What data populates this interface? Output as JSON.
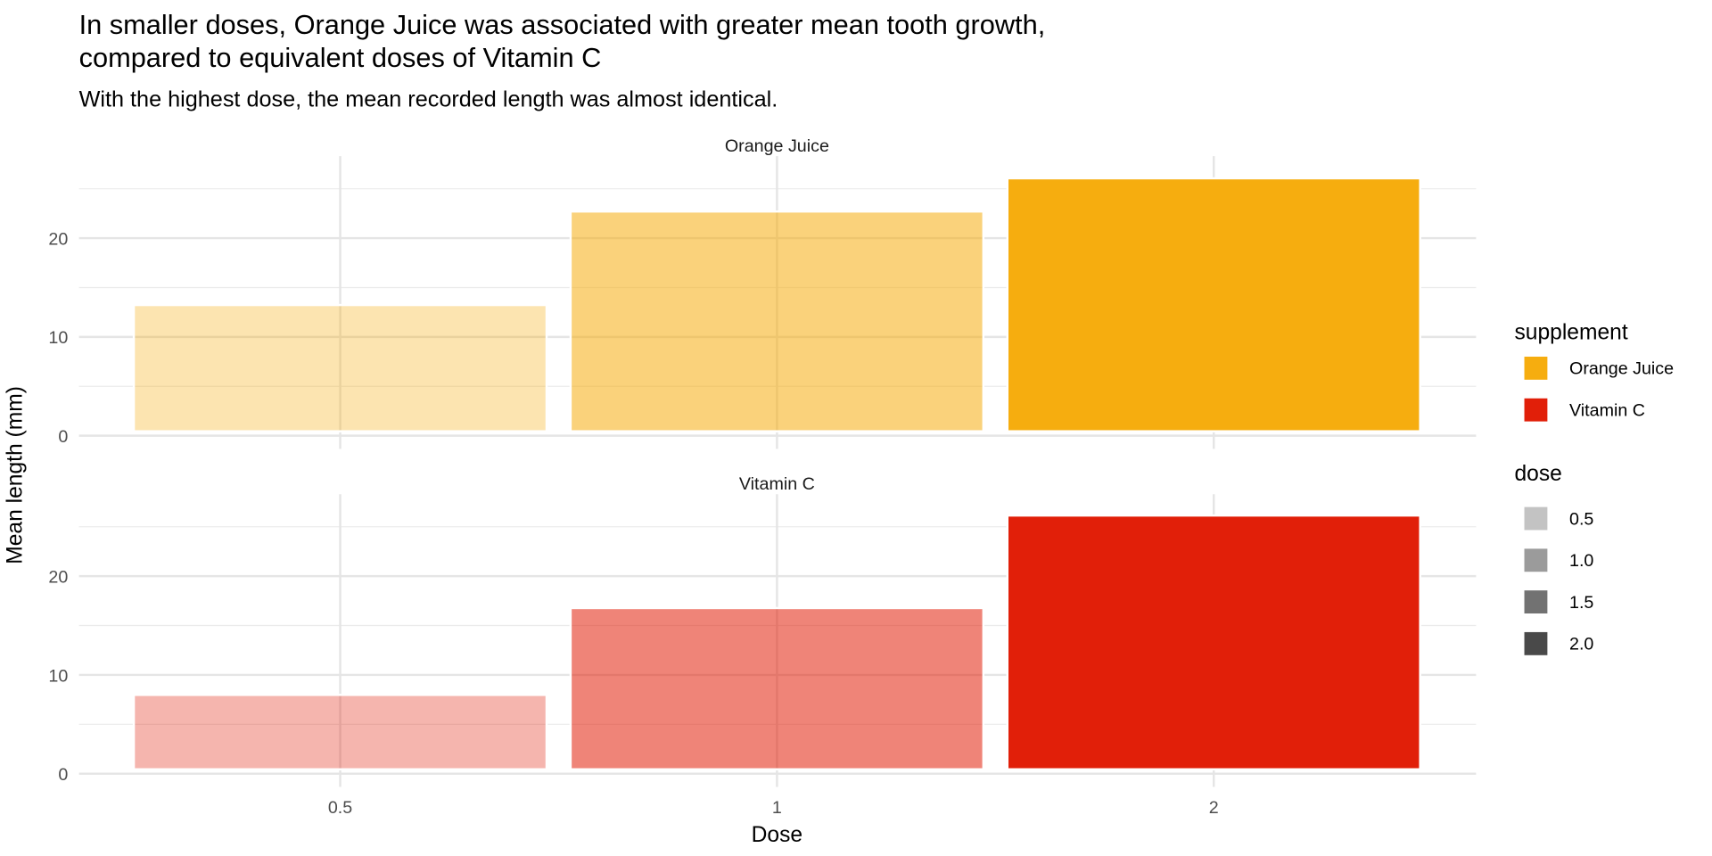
{
  "chart_data": {
    "type": "bar",
    "title": "In smaller doses, Orange Juice was associated with greater mean tooth growth,",
    "title_line2": "compared to equivalent doses of Vitamin C",
    "subtitle": "With the highest dose, the mean recorded length was almost identical.",
    "xlabel": "Dose",
    "ylabel": "Mean length (mm)",
    "categories": [
      "0.5",
      "1",
      "2"
    ],
    "ylim": [
      0,
      28.3
    ],
    "yticks": [
      "0",
      "10",
      "20"
    ],
    "grid": true,
    "facets": [
      {
        "name": "Orange Juice",
        "color": "#F6AD0F",
        "values": [
          13.23,
          22.7,
          26.06
        ]
      },
      {
        "name": "Vitamin C",
        "color": "#E11F09",
        "values": [
          7.98,
          16.77,
          26.14
        ]
      }
    ],
    "dose_alpha": [
      0.33,
      0.55,
      1.0
    ],
    "legend": {
      "placement": "right",
      "supplement": {
        "title": "supplement",
        "items": [
          {
            "label": "Orange Juice",
            "color": "#F6AD0F"
          },
          {
            "label": "Vitamin C",
            "color": "#E11F09"
          }
        ]
      },
      "dose": {
        "title": "dose",
        "items": [
          {
            "label": "0.5",
            "color": "#C3C3C3"
          },
          {
            "label": "1.0",
            "color": "#9B9B9B"
          },
          {
            "label": "1.5",
            "color": "#727272"
          },
          {
            "label": "2.0",
            "color": "#494949"
          }
        ]
      }
    }
  }
}
